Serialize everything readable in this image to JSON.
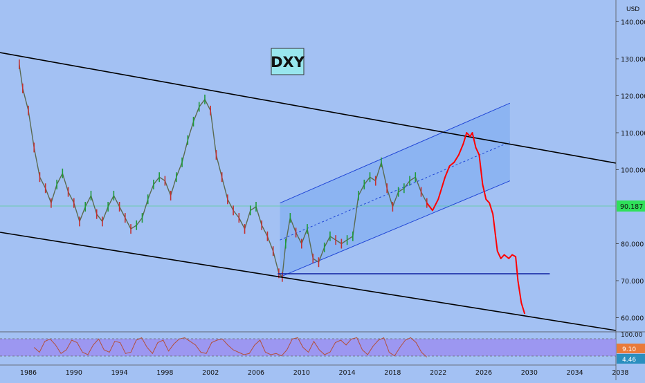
{
  "chart_data": {
    "type": "line",
    "symbol": "DXY",
    "currency": "USD",
    "last_price_label": "90.187",
    "y_ticks": [
      "140.000",
      "130.000",
      "120.000",
      "110.000",
      "100.000",
      "80.000",
      "70.000",
      "60.000"
    ],
    "x_ticks": [
      "1986",
      "1990",
      "1994",
      "1998",
      "2002",
      "2006",
      "2010",
      "2014",
      "2018",
      "2022",
      "2026",
      "2030",
      "2034",
      "2038"
    ],
    "ylim": [
      53,
      142
    ],
    "xlim": [
      1984,
      2039
    ],
    "price_series": {
      "x": [
        1985.2,
        1985.5,
        1986.0,
        1986.5,
        1987.0,
        1987.5,
        1988.0,
        1988.5,
        1989.0,
        1989.5,
        1990.0,
        1990.5,
        1991.0,
        1991.5,
        1992.0,
        1992.5,
        1993.0,
        1993.5,
        1994.0,
        1994.5,
        1995.0,
        1995.5,
        1996.0,
        1996.5,
        1997.0,
        1997.5,
        1998.0,
        1998.5,
        1999.0,
        1999.5,
        2000.0,
        2000.5,
        2001.0,
        2001.5,
        2002.0,
        2002.5,
        2003.0,
        2003.5,
        2004.0,
        2004.5,
        2005.0,
        2005.5,
        2006.0,
        2006.5,
        2007.0,
        2007.5,
        2008.0,
        2008.3,
        2008.6,
        2009.0,
        2009.5,
        2010.0,
        2010.5,
        2011.0,
        2011.5,
        2012.0,
        2012.5,
        2013.0,
        2013.5,
        2014.0,
        2014.5,
        2015.0,
        2015.5,
        2016.0,
        2016.5,
        2017.0,
        2017.5,
        2018.0,
        2018.5,
        2019.0,
        2019.5,
        2020.0,
        2020.5,
        2021.0
      ],
      "values": [
        128.5,
        122,
        116,
        106,
        98,
        95,
        91,
        96,
        99,
        94,
        91,
        86,
        90,
        93,
        88,
        86,
        90,
        93,
        90,
        87,
        84,
        85,
        87,
        92,
        96,
        98,
        97,
        93,
        98,
        102,
        108,
        113,
        117,
        119,
        116,
        104,
        98,
        92,
        89,
        87,
        84,
        89,
        90,
        85,
        82,
        78,
        72,
        71,
        80,
        87,
        83,
        80,
        84,
        76,
        75,
        79,
        82,
        81,
        80,
        81,
        82,
        93,
        96,
        98,
        97,
        102,
        95,
        90,
        94,
        95,
        97,
        98,
        94,
        91
      ]
    },
    "rsi_panel": {
      "top_label": "100.00",
      "value_label_1": "9.10",
      "value_label_2": "4.46",
      "values": [
        50,
        30,
        75,
        85,
        60,
        25,
        40,
        80,
        70,
        30,
        20,
        60,
        85,
        40,
        30,
        75,
        70,
        25,
        30,
        80,
        90,
        50,
        25,
        70,
        80,
        35,
        65,
        85,
        90,
        75,
        60,
        30,
        25,
        70,
        80,
        85,
        60,
        40,
        30,
        20,
        25,
        60,
        80,
        30,
        20,
        25,
        15,
        40,
        85,
        90,
        50,
        30,
        75,
        40,
        20,
        30,
        70,
        80,
        60,
        85,
        90,
        40,
        20,
        55,
        80,
        90,
        30,
        15,
        50,
        80,
        90,
        70,
        30,
        10
      ]
    }
  },
  "colors": {
    "background": "#a3c1f3",
    "channel_fill": "#7aaaf0",
    "channel_line": "#1f45d6",
    "support_line": "#0c1fa0",
    "trendline": "#000000",
    "projection": "#ff0000",
    "rsi_band": "#9b8ff0",
    "price_label_bg": "#2fe05a",
    "rsi_label_1": "#e97a3a",
    "rsi_label_2": "#2a8fbf"
  }
}
